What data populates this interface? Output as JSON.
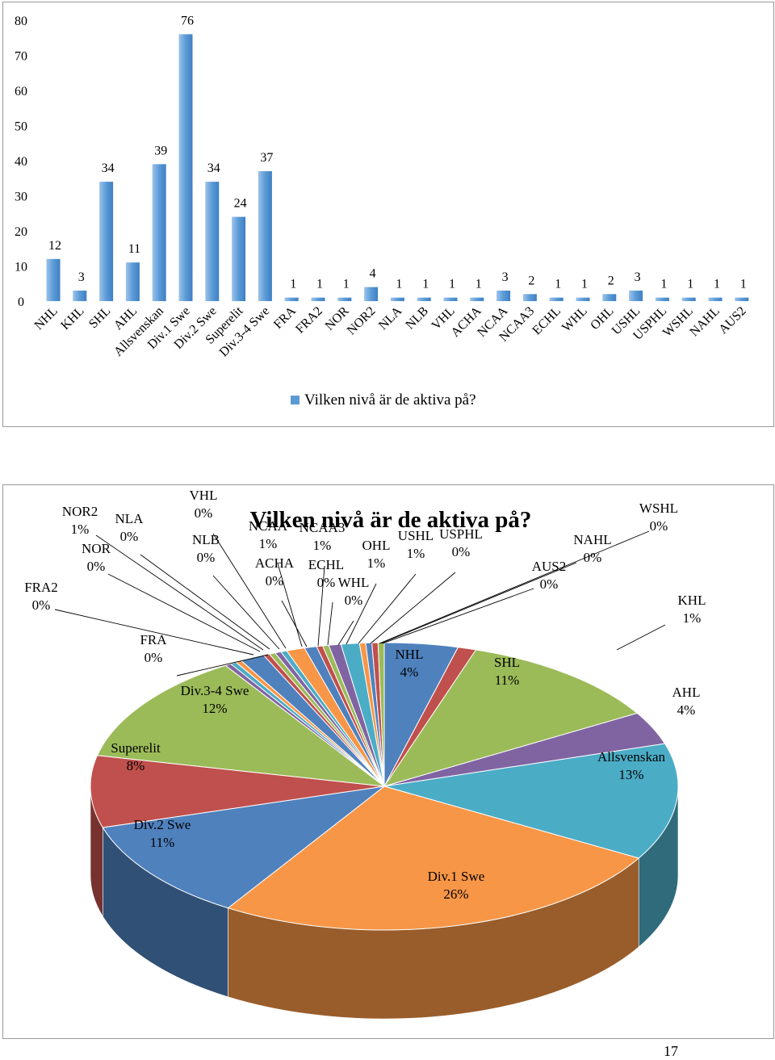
{
  "page_number": "17",
  "chart_data": [
    {
      "type": "bar",
      "legend": "Vilken nivå är de aktiva på?",
      "legend_position": "bottom",
      "color": "#5b9bd5",
      "yticks": [
        "0",
        "10",
        "20",
        "30",
        "40",
        "50",
        "60",
        "70",
        "80"
      ],
      "ylim": [
        0,
        80
      ],
      "categories": [
        "NHL",
        "KHL",
        "SHL",
        "AHL",
        "Allsvenskan",
        "Div.1 Swe",
        "Div.2 Swe",
        "Superelit",
        "Div.3-4 Swe",
        "FRA",
        "FRA2",
        "NOR",
        "NOR2",
        "NLA",
        "NLB",
        "VHL",
        "ACHA",
        "NCAA",
        "NCAA3",
        "ECHL",
        "WHL",
        "OHL",
        "USHL",
        "USPHL",
        "WSHL",
        "NAHL",
        "AUS2"
      ],
      "values": [
        12,
        3,
        34,
        11,
        39,
        76,
        34,
        24,
        37,
        1,
        1,
        1,
        4,
        1,
        1,
        1,
        1,
        3,
        2,
        1,
        1,
        2,
        3,
        1,
        1,
        1,
        1
      ],
      "value_labels": [
        "12",
        "3",
        "34",
        "11",
        "39",
        "76",
        "34",
        "24",
        "37",
        "1",
        "1",
        "1",
        "4",
        "1",
        "1",
        "1",
        "1",
        "3",
        "2",
        "1",
        "1",
        "2",
        "3",
        "1",
        "1",
        "1",
        "1"
      ]
    },
    {
      "type": "pie",
      "title": "Vilken nivå är de aktiva på?",
      "labels": [
        "NHL",
        "KHL",
        "SHL",
        "AHL",
        "Allsvenskan",
        "Div.1 Swe",
        "Div.2 Swe",
        "Superelit",
        "Div.3-4 Swe",
        "FRA",
        "FRA2",
        "NOR",
        "NOR2",
        "NLA",
        "NLB",
        "VHL",
        "ACHA",
        "NCAA",
        "NCAA3",
        "ECHL",
        "WHL",
        "OHL",
        "USHL",
        "USPHL",
        "WSHL",
        "NAHL",
        "AUS2"
      ],
      "values": [
        12,
        3,
        34,
        11,
        39,
        76,
        34,
        24,
        37,
        1,
        1,
        1,
        4,
        1,
        1,
        1,
        1,
        3,
        2,
        1,
        1,
        2,
        3,
        1,
        1,
        1,
        1
      ],
      "percent_labels": [
        "4%",
        "1%",
        "11%",
        "4%",
        "13%",
        "26%",
        "11%",
        "8%",
        "12%",
        "0%",
        "0%",
        "0%",
        "1%",
        "0%",
        "0%",
        "0%",
        "0%",
        "1%",
        "1%",
        "0%",
        "0%",
        "1%",
        "1%",
        "0%",
        "0%",
        "0%",
        "0%"
      ],
      "colors": [
        "#4f81bd",
        "#c0504d",
        "#9bbb59",
        "#8064a2",
        "#4bacc6",
        "#f79646",
        "#4f81bd",
        "#c0504d",
        "#9bbb59",
        "#8064a2",
        "#4bacc6",
        "#f79646",
        "#4f81bd",
        "#c0504d",
        "#9bbb59",
        "#8064a2",
        "#4bacc6",
        "#f79646",
        "#4f81bd",
        "#c0504d",
        "#9bbb59",
        "#8064a2",
        "#4bacc6",
        "#f79646",
        "#4f81bd",
        "#c0504d",
        "#9bbb59"
      ]
    }
  ]
}
